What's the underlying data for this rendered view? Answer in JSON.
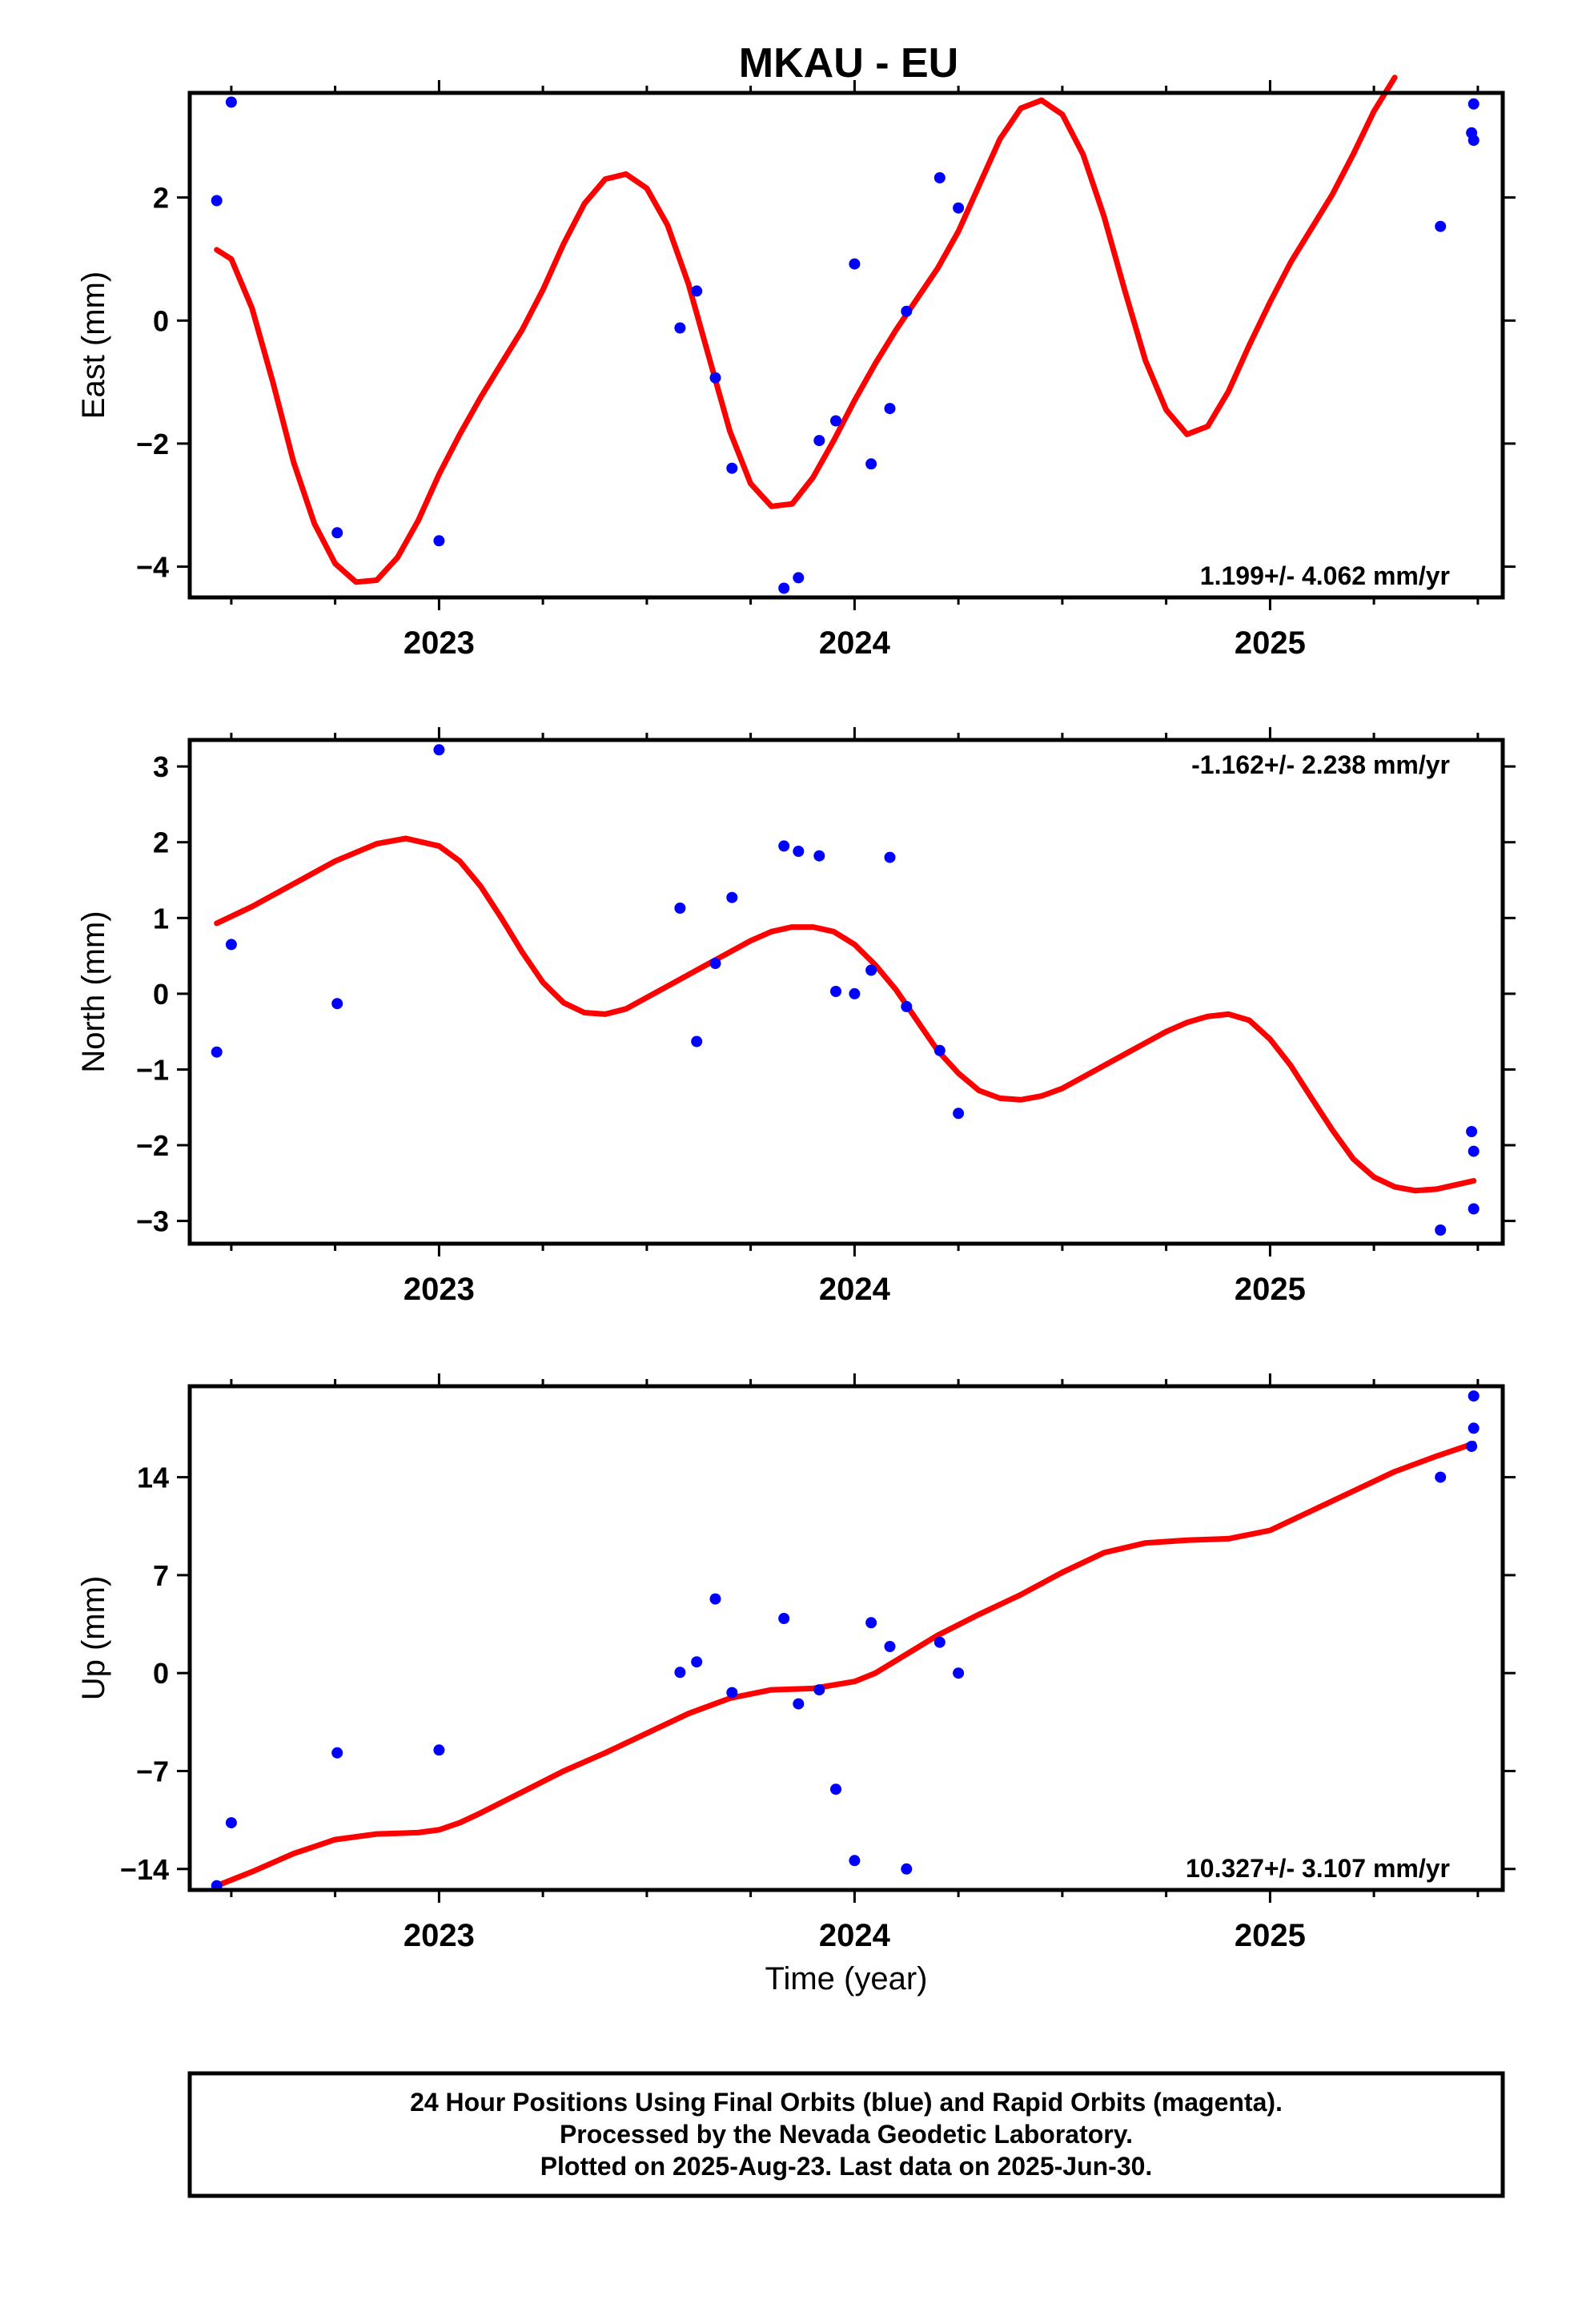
{
  "figure_title": "MKAU - EU",
  "footer": {
    "line1": "24 Hour Positions Using Final Orbits (blue) and Rapid Orbits (magenta).",
    "line2": "Processed by the Nevada Geodetic Laboratory.",
    "line3": "Plotted on 2025-Aug-23. Last data on 2025-Jun-30."
  },
  "colors": {
    "points": "#0000ff",
    "fit": "#ff0000",
    "axes": "#000000"
  },
  "chart_data": [
    {
      "type": "scatter",
      "ylabel": "East (mm)",
      "xlabel": "",
      "rate_label": "1.199+/- 4.062 mm/yr",
      "rate_position": "bottom-right",
      "xlim": [
        2022.4,
        2025.56
      ],
      "ylim": [
        -4.5,
        3.7
      ],
      "x_ticks": [
        2023,
        2024,
        2025
      ],
      "y_ticks": [
        -4,
        -2,
        0,
        2
      ],
      "y_tick_labels": [
        "−4",
        "−2",
        "0",
        "2"
      ],
      "points": [
        [
          2022.465,
          1.95
        ],
        [
          2022.5,
          3.55
        ],
        [
          2022.755,
          -3.45
        ],
        [
          2023.0,
          -3.58
        ],
        [
          2023.58,
          -0.12
        ],
        [
          2023.62,
          0.48
        ],
        [
          2023.665,
          -0.93
        ],
        [
          2023.705,
          -2.4
        ],
        [
          2023.83,
          -4.35
        ],
        [
          2023.865,
          -4.18
        ],
        [
          2023.915,
          -1.95
        ],
        [
          2023.955,
          -1.63
        ],
        [
          2024.0,
          0.92
        ],
        [
          2024.04,
          -2.33
        ],
        [
          2024.085,
          -1.43
        ],
        [
          2024.125,
          0.15
        ],
        [
          2024.205,
          2.32
        ],
        [
          2024.25,
          1.83
        ],
        [
          2025.41,
          1.53
        ],
        [
          2025.485,
          3.05
        ],
        [
          2025.49,
          2.93
        ],
        [
          2025.49,
          3.52
        ]
      ],
      "fit": [
        [
          2022.465,
          1.15
        ],
        [
          2022.5,
          1.0
        ],
        [
          2022.55,
          0.2
        ],
        [
          2022.6,
          -1.0
        ],
        [
          2022.65,
          -2.3
        ],
        [
          2022.7,
          -3.3
        ],
        [
          2022.75,
          -3.95
        ],
        [
          2022.8,
          -4.25
        ],
        [
          2022.85,
          -4.22
        ],
        [
          2022.9,
          -3.85
        ],
        [
          2022.95,
          -3.25
        ],
        [
          2023.0,
          -2.5
        ],
        [
          2023.05,
          -1.85
        ],
        [
          2023.1,
          -1.25
        ],
        [
          2023.15,
          -0.7
        ],
        [
          2023.2,
          -0.15
        ],
        [
          2023.25,
          0.5
        ],
        [
          2023.3,
          1.25
        ],
        [
          2023.35,
          1.9
        ],
        [
          2023.4,
          2.3
        ],
        [
          2023.45,
          2.38
        ],
        [
          2023.5,
          2.15
        ],
        [
          2023.55,
          1.55
        ],
        [
          2023.6,
          0.6
        ],
        [
          2023.65,
          -0.6
        ],
        [
          2023.7,
          -1.8
        ],
        [
          2023.75,
          -2.65
        ],
        [
          2023.8,
          -3.02
        ],
        [
          2023.85,
          -2.98
        ],
        [
          2023.9,
          -2.55
        ],
        [
          2023.95,
          -1.95
        ],
        [
          2024.0,
          -1.3
        ],
        [
          2024.05,
          -0.7
        ],
        [
          2024.1,
          -0.15
        ],
        [
          2024.15,
          0.35
        ],
        [
          2024.2,
          0.85
        ],
        [
          2024.25,
          1.45
        ],
        [
          2024.3,
          2.2
        ],
        [
          2024.35,
          2.95
        ],
        [
          2024.4,
          3.45
        ],
        [
          2024.45,
          3.58
        ],
        [
          2024.5,
          3.35
        ],
        [
          2024.55,
          2.7
        ],
        [
          2024.6,
          1.7
        ],
        [
          2024.65,
          0.5
        ],
        [
          2024.7,
          -0.65
        ],
        [
          2024.75,
          -1.45
        ],
        [
          2024.8,
          -1.85
        ],
        [
          2024.85,
          -1.72
        ],
        [
          2024.9,
          -1.15
        ],
        [
          2024.95,
          -0.4
        ],
        [
          2025.0,
          0.3
        ],
        [
          2025.05,
          0.95
        ],
        [
          2025.1,
          1.5
        ],
        [
          2025.15,
          2.05
        ],
        [
          2025.2,
          2.7
        ],
        [
          2025.25,
          3.4
        ],
        [
          2025.3,
          3.95
        ]
      ]
    },
    {
      "type": "scatter",
      "ylabel": "North (mm)",
      "xlabel": "",
      "rate_label": "-1.162+/- 2.238 mm/yr",
      "rate_position": "top-right",
      "xlim": [
        2022.4,
        2025.56
      ],
      "ylim": [
        -3.3,
        3.35
      ],
      "x_ticks": [
        2023,
        2024,
        2025
      ],
      "y_ticks": [
        -3,
        -2,
        -1,
        0,
        1,
        2,
        3
      ],
      "y_tick_labels": [
        "−3",
        "−2",
        "−1",
        "0",
        "1",
        "2",
        "3"
      ],
      "points": [
        [
          2022.465,
          -0.77
        ],
        [
          2022.5,
          0.65
        ],
        [
          2022.755,
          -0.13
        ],
        [
          2023.0,
          3.22
        ],
        [
          2023.58,
          1.13
        ],
        [
          2023.62,
          -0.63
        ],
        [
          2023.665,
          0.4
        ],
        [
          2023.705,
          1.27
        ],
        [
          2023.83,
          1.95
        ],
        [
          2023.865,
          1.88
        ],
        [
          2023.915,
          1.82
        ],
        [
          2023.955,
          0.03
        ],
        [
          2024.0,
          0.0
        ],
        [
          2024.04,
          0.31
        ],
        [
          2024.085,
          1.8
        ],
        [
          2024.125,
          -0.17
        ],
        [
          2024.205,
          -0.75
        ],
        [
          2024.25,
          -1.58
        ],
        [
          2025.41,
          -3.12
        ],
        [
          2025.485,
          -1.82
        ],
        [
          2025.49,
          -2.08
        ],
        [
          2025.49,
          -2.84
        ]
      ],
      "fit": [
        [
          2022.465,
          0.93
        ],
        [
          2022.55,
          1.15
        ],
        [
          2022.65,
          1.45
        ],
        [
          2022.75,
          1.75
        ],
        [
          2022.85,
          1.98
        ],
        [
          2022.92,
          2.05
        ],
        [
          2023.0,
          1.95
        ],
        [
          2023.05,
          1.75
        ],
        [
          2023.1,
          1.42
        ],
        [
          2023.15,
          1.0
        ],
        [
          2023.2,
          0.55
        ],
        [
          2023.25,
          0.15
        ],
        [
          2023.3,
          -0.12
        ],
        [
          2023.35,
          -0.25
        ],
        [
          2023.4,
          -0.27
        ],
        [
          2023.45,
          -0.2
        ],
        [
          2023.5,
          -0.05
        ],
        [
          2023.55,
          0.1
        ],
        [
          2023.6,
          0.25
        ],
        [
          2023.65,
          0.4
        ],
        [
          2023.7,
          0.55
        ],
        [
          2023.75,
          0.7
        ],
        [
          2023.8,
          0.82
        ],
        [
          2023.85,
          0.88
        ],
        [
          2023.9,
          0.88
        ],
        [
          2023.95,
          0.82
        ],
        [
          2024.0,
          0.65
        ],
        [
          2024.05,
          0.38
        ],
        [
          2024.1,
          0.05
        ],
        [
          2024.15,
          -0.35
        ],
        [
          2024.2,
          -0.75
        ],
        [
          2024.25,
          -1.05
        ],
        [
          2024.3,
          -1.28
        ],
        [
          2024.35,
          -1.38
        ],
        [
          2024.4,
          -1.4
        ],
        [
          2024.45,
          -1.35
        ],
        [
          2024.5,
          -1.25
        ],
        [
          2024.55,
          -1.1
        ],
        [
          2024.6,
          -0.95
        ],
        [
          2024.65,
          -0.8
        ],
        [
          2024.7,
          -0.65
        ],
        [
          2024.75,
          -0.5
        ],
        [
          2024.8,
          -0.38
        ],
        [
          2024.85,
          -0.3
        ],
        [
          2024.9,
          -0.27
        ],
        [
          2024.95,
          -0.35
        ],
        [
          2025.0,
          -0.6
        ],
        [
          2025.05,
          -0.95
        ],
        [
          2025.1,
          -1.38
        ],
        [
          2025.15,
          -1.8
        ],
        [
          2025.2,
          -2.18
        ],
        [
          2025.25,
          -2.42
        ],
        [
          2025.3,
          -2.55
        ],
        [
          2025.35,
          -2.6
        ],
        [
          2025.4,
          -2.58
        ],
        [
          2025.45,
          -2.52
        ],
        [
          2025.49,
          -2.47
        ]
      ]
    },
    {
      "type": "scatter",
      "ylabel": "Up (mm)",
      "xlabel": "Time (year)",
      "rate_label": "10.327+/- 3.107 mm/yr",
      "rate_position": "bottom-right",
      "xlim": [
        2022.4,
        2025.56
      ],
      "ylim": [
        -15.5,
        20.5
      ],
      "x_ticks": [
        2023,
        2024,
        2025
      ],
      "y_ticks": [
        -14,
        -7,
        0,
        7,
        14
      ],
      "y_tick_labels": [
        "−14",
        "−7",
        "0",
        "7",
        "14"
      ],
      "points": [
        [
          2022.465,
          -15.2
        ],
        [
          2022.5,
          -10.7
        ],
        [
          2022.755,
          -5.7
        ],
        [
          2023.0,
          -5.5
        ],
        [
          2023.58,
          0.05
        ],
        [
          2023.62,
          0.8
        ],
        [
          2023.665,
          5.3
        ],
        [
          2023.705,
          -1.4
        ],
        [
          2023.83,
          3.9
        ],
        [
          2023.865,
          -2.2
        ],
        [
          2023.915,
          -1.2
        ],
        [
          2023.955,
          -8.3
        ],
        [
          2024.0,
          -13.4
        ],
        [
          2024.04,
          3.6
        ],
        [
          2024.085,
          1.9
        ],
        [
          2024.125,
          -14.0
        ],
        [
          2024.205,
          2.2
        ],
        [
          2024.25,
          0.0
        ],
        [
          2025.41,
          14.0
        ],
        [
          2025.485,
          16.2
        ],
        [
          2025.49,
          17.5
        ],
        [
          2025.49,
          19.8
        ]
      ],
      "fit": [
        [
          2022.465,
          -15.2
        ],
        [
          2022.55,
          -14.2
        ],
        [
          2022.65,
          -12.9
        ],
        [
          2022.75,
          -11.9
        ],
        [
          2022.85,
          -11.5
        ],
        [
          2022.95,
          -11.4
        ],
        [
          2023.0,
          -11.2
        ],
        [
          2023.05,
          -10.7
        ],
        [
          2023.1,
          -10.0
        ],
        [
          2023.2,
          -8.5
        ],
        [
          2023.3,
          -7.0
        ],
        [
          2023.4,
          -5.7
        ],
        [
          2023.5,
          -4.3
        ],
        [
          2023.6,
          -2.9
        ],
        [
          2023.7,
          -1.8
        ],
        [
          2023.8,
          -1.2
        ],
        [
          2023.9,
          -1.1
        ],
        [
          2024.0,
          -0.6
        ],
        [
          2024.05,
          0.0
        ],
        [
          2024.1,
          0.9
        ],
        [
          2024.2,
          2.7
        ],
        [
          2024.3,
          4.2
        ],
        [
          2024.4,
          5.6
        ],
        [
          2024.5,
          7.2
        ],
        [
          2024.6,
          8.6
        ],
        [
          2024.7,
          9.3
        ],
        [
          2024.8,
          9.5
        ],
        [
          2024.9,
          9.6
        ],
        [
          2025.0,
          10.2
        ],
        [
          2025.1,
          11.6
        ],
        [
          2025.2,
          13.0
        ],
        [
          2025.3,
          14.4
        ],
        [
          2025.4,
          15.5
        ],
        [
          2025.49,
          16.4
        ]
      ]
    }
  ]
}
